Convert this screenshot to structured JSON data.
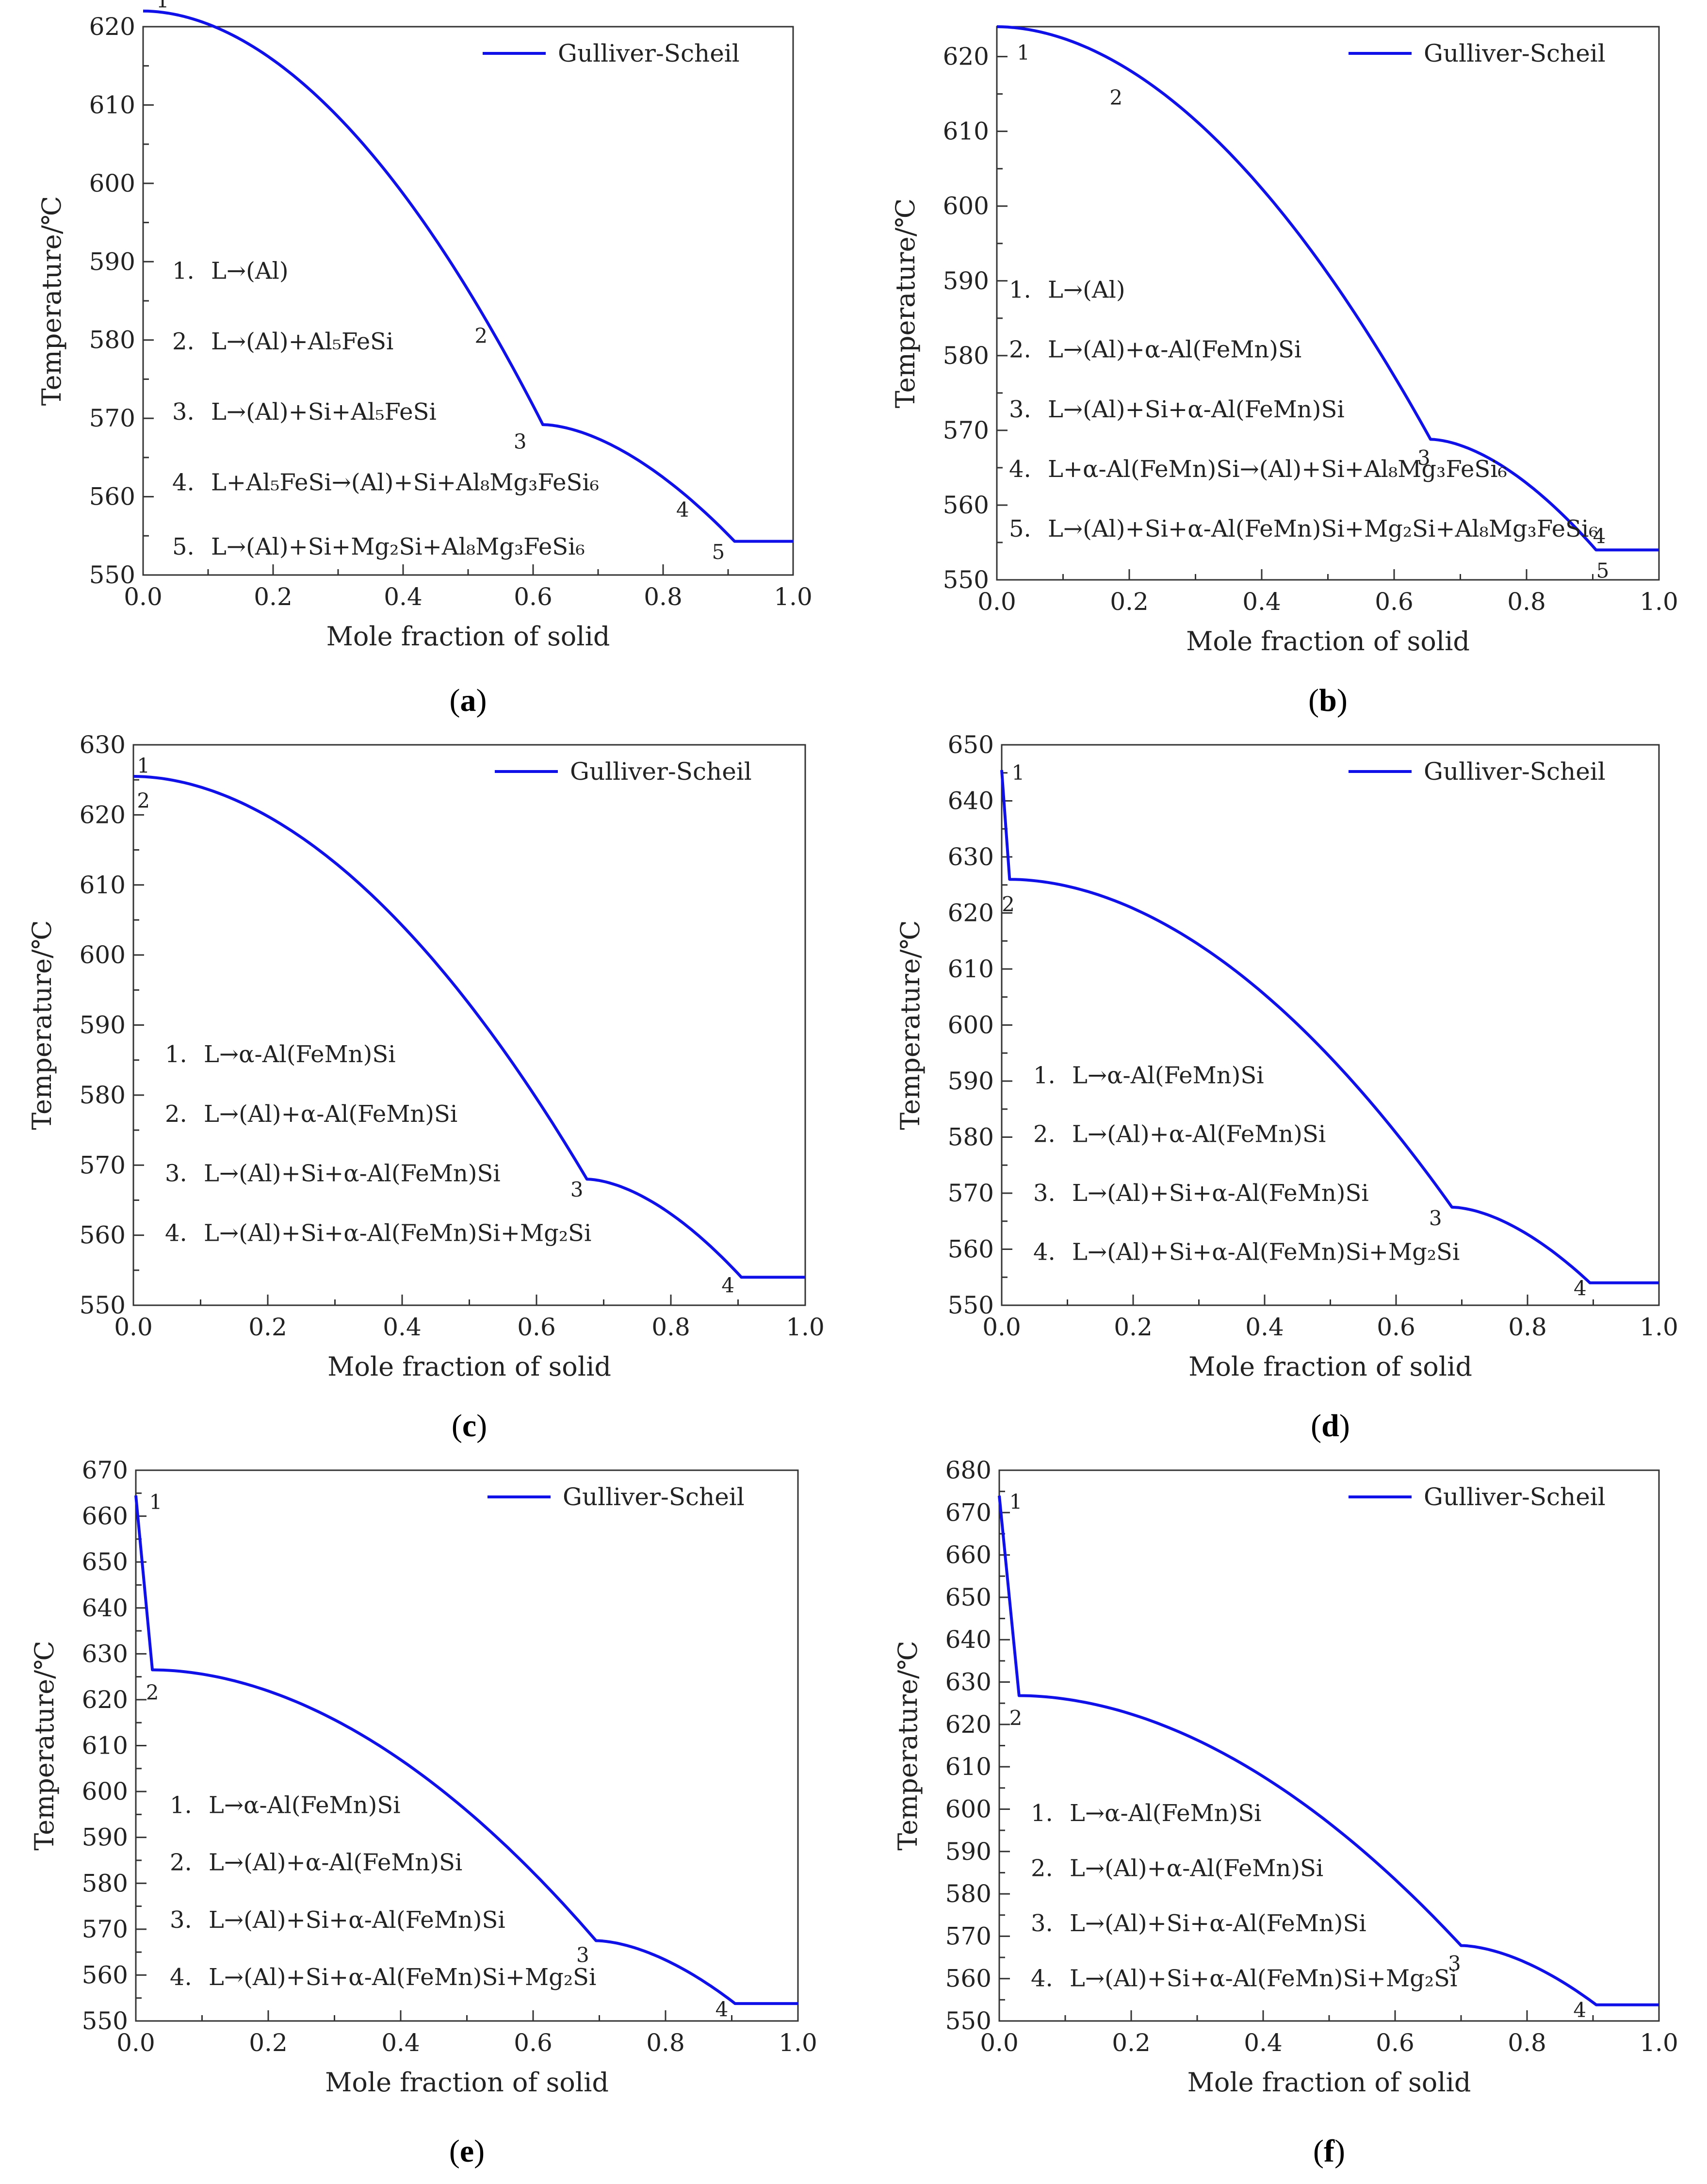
{
  "colors": {
    "curve": "#1010e8",
    "axis": "#333333",
    "text": "#222222"
  },
  "chart_data": [
    {
      "id": "a",
      "panel_label": "a",
      "type": "line",
      "xlabel": "Mole fraction of solid",
      "ylabel": "Temperature/℃",
      "xlim": [
        0,
        1
      ],
      "ylim": [
        550,
        620
      ],
      "xticks": [
        "0.0",
        "0.2",
        "0.4",
        "0.6",
        "0.8",
        "1.0"
      ],
      "yticks": [
        "550",
        "560",
        "570",
        "580",
        "590",
        "600",
        "610",
        "620"
      ],
      "legend": "Gulliver-Scheil",
      "series": [
        {
          "name": "Gulliver-Scheil",
          "type": "scheil",
          "start": [
            0,
            622
          ],
          "knee1": [
            0.615,
            569.2
          ],
          "knee2": [
            0.91,
            554.3
          ],
          "end": [
            1.0,
            554.3
          ],
          "exp1": 1.9,
          "exp2": 1.7
        }
      ],
      "point_labels": [
        {
          "text": "1",
          "x": 0.03,
          "y": 623.3
        },
        {
          "text": "2",
          "x": 0.52,
          "y": 580.5
        },
        {
          "text": "3",
          "x": 0.58,
          "y": 567.0
        },
        {
          "text": "4",
          "x": 0.83,
          "y": 558.3
        },
        {
          "text": "5",
          "x": 0.885,
          "y": 552.9
        }
      ],
      "annotations": [
        {
          "num": "1.",
          "label": "L→(Al)",
          "y": 588.8
        },
        {
          "num": "2.",
          "label": "L→(Al)+Al₅FeSi",
          "y": 579.8
        },
        {
          "num": "3.",
          "label": "L→(Al)+Si+Al₅FeSi",
          "y": 570.8
        },
        {
          "num": "4.",
          "label": "L+Al₅FeSi→(Al)+Si+Al₈Mg₃FeSi₆",
          "y": 561.8
        },
        {
          "num": "5.",
          "label": "L→(Al)+Si+Mg₂Si+Al₈Mg₃FeSi₆",
          "y": 553.6
        }
      ]
    },
    {
      "id": "b",
      "panel_label": "b",
      "type": "line",
      "xlabel": "Mole fraction of solid",
      "ylabel": "Temperature/℃",
      "xlim": [
        0,
        1
      ],
      "ylim": [
        550,
        624
      ],
      "xticks": [
        "0.0",
        "0.2",
        "0.4",
        "0.6",
        "0.8",
        "1.0"
      ],
      "yticks": [
        "550",
        "560",
        "570",
        "580",
        "590",
        "600",
        "610",
        "620"
      ],
      "legend": "Gulliver-Scheil",
      "series": [
        {
          "name": "Gulliver-Scheil",
          "type": "scheil",
          "start": [
            0,
            624
          ],
          "knee1": [
            0.655,
            568.8
          ],
          "knee2": [
            0.905,
            554.0
          ],
          "end": [
            1.0,
            554.0
          ],
          "exp1": 1.9,
          "exp2": 1.7
        }
      ],
      "point_labels": [
        {
          "text": "1",
          "x": 0.04,
          "y": 620.5
        },
        {
          "text": "2",
          "x": 0.18,
          "y": 614.5
        },
        {
          "text": "3",
          "x": 0.645,
          "y": 566.3
        },
        {
          "text": "4",
          "x": 0.91,
          "y": 555.8
        },
        {
          "text": "5",
          "x": 0.915,
          "y": 551.2
        }
      ],
      "annotations": [
        {
          "num": "1.",
          "label": "L→(Al)",
          "y": 588.8
        },
        {
          "num": "2.",
          "label": "L→(Al)+α-Al(FeMn)Si",
          "y": 580.8
        },
        {
          "num": "3.",
          "label": "L→(Al)+Si+α-Al(FeMn)Si",
          "y": 572.8
        },
        {
          "num": "4.",
          "label": "L+α-Al(FeMn)Si→(Al)+Si+Al₈Mg₃FeSi₆",
          "y": 564.8
        },
        {
          "num": "5.",
          "label": "L→(Al)+Si+α-Al(FeMn)Si+Mg₂Si+Al₈Mg₃FeSi₆",
          "y": 556.8
        }
      ]
    },
    {
      "id": "c",
      "panel_label": "c",
      "type": "line",
      "xlabel": "Mole fraction of solid",
      "ylabel": "Temperature/℃",
      "xlim": [
        0,
        1
      ],
      "ylim": [
        550,
        630
      ],
      "xticks": [
        "0.0",
        "0.2",
        "0.4",
        "0.6",
        "0.8",
        "1.0"
      ],
      "yticks": [
        "550",
        "560",
        "570",
        "580",
        "590",
        "600",
        "610",
        "620",
        "630"
      ],
      "legend": "Gulliver-Scheil",
      "series": [
        {
          "name": "Gulliver-Scheil",
          "type": "scheil",
          "start": [
            0,
            625.5
          ],
          "knee1": [
            0.675,
            568.0
          ],
          "knee2": [
            0.905,
            554.0
          ],
          "end": [
            1.0,
            554.0
          ],
          "exp1": 1.9,
          "exp2": 1.7
        }
      ],
      "point_labels": [
        {
          "text": "1",
          "x": 0.015,
          "y": 627.0
        },
        {
          "text": "2",
          "x": 0.015,
          "y": 622.0
        },
        {
          "text": "3",
          "x": 0.66,
          "y": 566.5
        },
        {
          "text": "4",
          "x": 0.885,
          "y": 552.8
        }
      ],
      "annotations": [
        {
          "num": "1.",
          "label": "L→α-Al(FeMn)Si",
          "y": 585.8
        },
        {
          "num": "2.",
          "label": "L→(Al)+α-Al(FeMn)Si",
          "y": 577.3
        },
        {
          "num": "3.",
          "label": "L→(Al)+Si+α-Al(FeMn)Si",
          "y": 568.8
        },
        {
          "num": "4.",
          "label": "L→(Al)+Si+α-Al(FeMn)Si+Mg₂Si",
          "y": 560.3
        }
      ]
    },
    {
      "id": "d",
      "panel_label": "d",
      "type": "line",
      "xlabel": "Mole fraction of solid",
      "ylabel": "Temperature/℃",
      "xlim": [
        0,
        1
      ],
      "ylim": [
        550,
        650
      ],
      "xticks": [
        "0.0",
        "0.2",
        "0.4",
        "0.6",
        "0.8",
        "1.0"
      ],
      "yticks": [
        "550",
        "560",
        "570",
        "580",
        "590",
        "600",
        "610",
        "620",
        "630",
        "640",
        "650"
      ],
      "legend": "Gulliver-Scheil",
      "series": [
        {
          "name": "Gulliver-Scheil",
          "type": "scheil_primary",
          "top": [
            0,
            645.5
          ],
          "start": [
            0.012,
            626.0
          ],
          "knee1": [
            0.685,
            567.5
          ],
          "knee2": [
            0.895,
            554.0
          ],
          "end": [
            1.0,
            554.0
          ],
          "exp1": 1.9,
          "exp2": 1.7
        }
      ],
      "point_labels": [
        {
          "text": "1",
          "x": 0.025,
          "y": 645.0
        },
        {
          "text": "2",
          "x": 0.01,
          "y": 621.5
        },
        {
          "text": "3",
          "x": 0.66,
          "y": 565.5
        },
        {
          "text": "4",
          "x": 0.88,
          "y": 553.0
        }
      ],
      "annotations": [
        {
          "num": "1.",
          "label": "L→α-Al(FeMn)Si",
          "y": 591.0
        },
        {
          "num": "2.",
          "label": "L→(Al)+α-Al(FeMn)Si",
          "y": 580.5
        },
        {
          "num": "3.",
          "label": "L→(Al)+Si+α-Al(FeMn)Si",
          "y": 570.0
        },
        {
          "num": "4.",
          "label": "L→(Al)+Si+α-Al(FeMn)Si+Mg₂Si",
          "y": 559.5
        }
      ]
    },
    {
      "id": "e",
      "panel_label": "e",
      "type": "line",
      "xlabel": "Mole fraction of solid",
      "ylabel": "Temperature/℃",
      "xlim": [
        0,
        1
      ],
      "ylim": [
        550,
        670
      ],
      "xticks": [
        "0.0",
        "0.2",
        "0.4",
        "0.6",
        "0.8",
        "1.0"
      ],
      "yticks": [
        "550",
        "560",
        "570",
        "580",
        "590",
        "600",
        "610",
        "620",
        "630",
        "640",
        "650",
        "660",
        "670"
      ],
      "legend": "Gulliver-Scheil",
      "series": [
        {
          "name": "Gulliver-Scheil",
          "type": "scheil_primary",
          "top": [
            0,
            664.5
          ],
          "start": [
            0.025,
            626.5
          ],
          "knee1": [
            0.695,
            567.5
          ],
          "knee2": [
            0.905,
            553.8
          ],
          "end": [
            1.0,
            553.8
          ],
          "exp1": 1.9,
          "exp2": 1.7
        }
      ],
      "point_labels": [
        {
          "text": "1",
          "x": 0.03,
          "y": 663.0
        },
        {
          "text": "2",
          "x": 0.025,
          "y": 621.5
        },
        {
          "text": "3",
          "x": 0.675,
          "y": 564.3
        },
        {
          "text": "4",
          "x": 0.885,
          "y": 552.5
        }
      ],
      "annotations": [
        {
          "num": "1.",
          "label": "L→α-Al(FeMn)Si",
          "y": 597.0
        },
        {
          "num": "2.",
          "label": "L→(Al)+α-Al(FeMn)Si",
          "y": 584.5
        },
        {
          "num": "3.",
          "label": "L→(Al)+Si+α-Al(FeMn)Si",
          "y": 572.0
        },
        {
          "num": "4.",
          "label": "L→(Al)+Si+α-Al(FeMn)Si+Mg₂Si",
          "y": 559.5
        }
      ]
    },
    {
      "id": "f",
      "panel_label": "f",
      "type": "line",
      "xlabel": "Mole fraction of solid",
      "ylabel": "Temperature/℃",
      "xlim": [
        0,
        1
      ],
      "ylim": [
        550,
        680
      ],
      "xticks": [
        "0.0",
        "0.2",
        "0.4",
        "0.6",
        "0.8",
        "1.0"
      ],
      "yticks": [
        "550",
        "560",
        "570",
        "580",
        "590",
        "600",
        "610",
        "620",
        "630",
        "640",
        "650",
        "660",
        "670",
        "680"
      ],
      "legend": "Gulliver-Scheil",
      "series": [
        {
          "name": "Gulliver-Scheil",
          "type": "scheil_primary",
          "top": [
            0,
            674.0
          ],
          "start": [
            0.03,
            626.8
          ],
          "knee1": [
            0.7,
            567.8
          ],
          "knee2": [
            0.905,
            553.8
          ],
          "end": [
            1.0,
            553.8
          ],
          "exp1": 1.9,
          "exp2": 1.7
        }
      ],
      "point_labels": [
        {
          "text": "1",
          "x": 0.025,
          "y": 672.5
        },
        {
          "text": "2",
          "x": 0.025,
          "y": 621.5
        },
        {
          "text": "3",
          "x": 0.69,
          "y": 563.5
        },
        {
          "text": "4",
          "x": 0.88,
          "y": 552.5
        }
      ],
      "annotations": [
        {
          "num": "1.",
          "label": "L→α-Al(FeMn)Si",
          "y": 599.0
        },
        {
          "num": "2.",
          "label": "L→(Al)+α-Al(FeMn)Si",
          "y": 586.0
        },
        {
          "num": "3.",
          "label": "L→(Al)+Si+α-Al(FeMn)Si",
          "y": 573.0
        },
        {
          "num": "4.",
          "label": "L→(Al)+Si+α-Al(FeMn)Si+Mg₂Si",
          "y": 560.0
        }
      ]
    }
  ]
}
